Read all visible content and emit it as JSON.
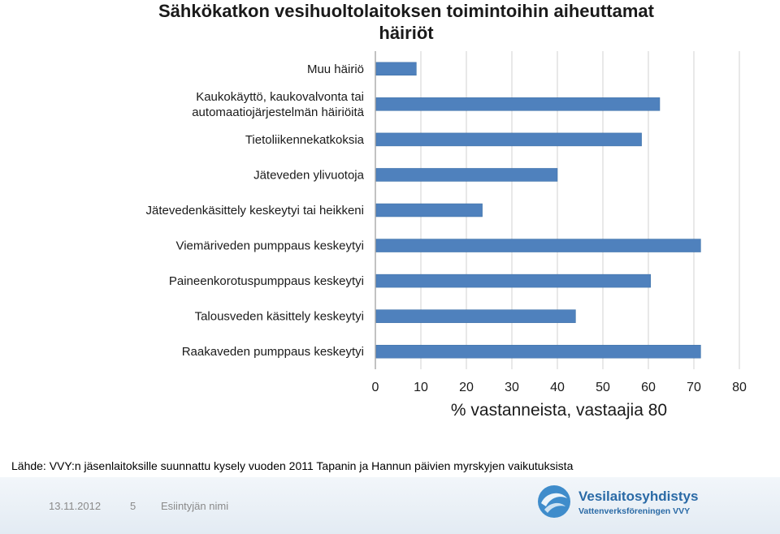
{
  "chart_data": {
    "type": "bar",
    "orientation": "horizontal",
    "title": [
      "Sähkökatkon vesihuoltolaitoksen toimintoihin aiheuttamat",
      "häiriöt"
    ],
    "xlabel": "% vastanneista, vastaajia 80",
    "xlim": [
      0,
      80
    ],
    "xticks": [
      "0",
      "10",
      "20",
      "30",
      "40",
      "50",
      "60",
      "70",
      "80"
    ],
    "grid": true,
    "categories": [
      [
        "Muu häiriö"
      ],
      [
        "Kaukokäyttö, kaukovalvonta tai",
        "automaatiojärjestelmän häiriöitä"
      ],
      [
        "Tietoliikennekatkoksia"
      ],
      [
        "Jäteveden ylivuotoja"
      ],
      [
        "Jätevedenkäsittely keskeytyi tai heikkeni"
      ],
      [
        "Viemäriveden pumppaus keskeytyi"
      ],
      [
        "Paineenkorotuspumppaus keskeytyi"
      ],
      [
        "Talousveden käsittely keskeytyi"
      ],
      [
        "Raakaveden pumppaus keskeytyi"
      ]
    ],
    "values": [
      9,
      62.5,
      58.5,
      40,
      23.5,
      71.5,
      60.5,
      44,
      71.5
    ],
    "bar_color": "#4f81bd"
  },
  "source": "Lähde: VVY:n jäsenlaitoksille suunnattu kysely vuoden 2011 Tapanin ja Hannun päivien myrskyjen vaikutuksista",
  "footer": {
    "date": "13.11.2012",
    "page": "5",
    "presenter": "Esiintyjän nimi",
    "logo_name": "Vesilaitosyhdistys",
    "logo_sub": "Vattenverksföreningen VVY"
  }
}
